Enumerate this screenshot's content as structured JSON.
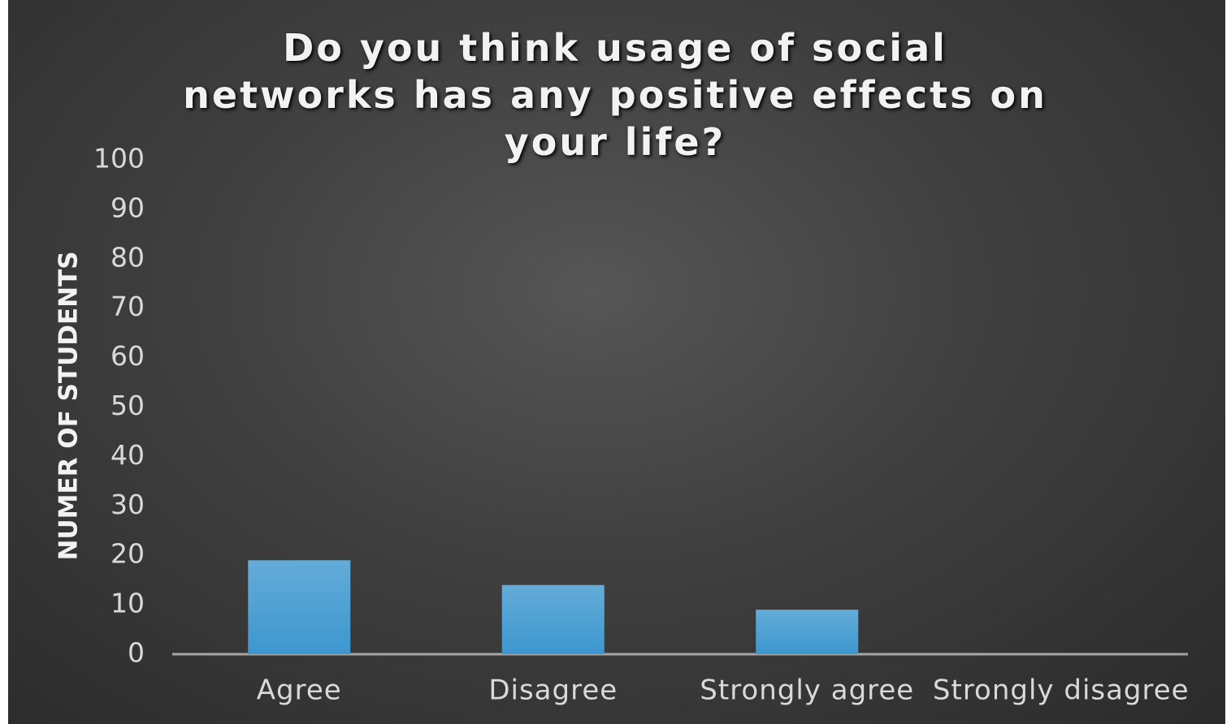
{
  "chart_data": {
    "type": "bar",
    "title": "Do you think usage of social networks has any positive effects on your life?",
    "y_label": "NUMER OF STUDENTS",
    "categories": [
      "Agree",
      "Disagree",
      "Strongly agree",
      "Strongly disagree"
    ],
    "values": [
      19,
      14,
      9,
      0
    ],
    "color": "#3d97cf",
    "ylim": [
      0,
      100
    ],
    "yticks": [
      0,
      10,
      20,
      30,
      40,
      50,
      60,
      70,
      80,
      90,
      100
    ],
    "grid": false
  }
}
